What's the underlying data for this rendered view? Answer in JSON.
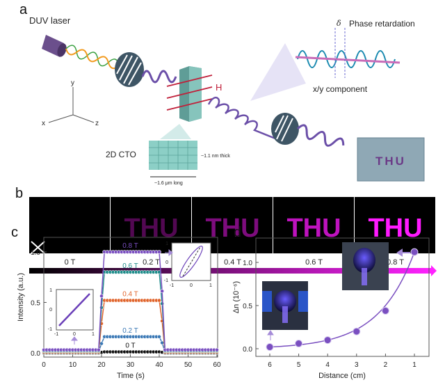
{
  "panel_a": {
    "label": "a",
    "laser": "DUV laser",
    "phase": "Phase retardation",
    "delta": "δ",
    "component": "x/y component",
    "field": "H",
    "material": "2D CTO",
    "thickness": "~1.1 nm thick",
    "length": "~1.6 μm long",
    "axis_x": "x",
    "axis_y": "y",
    "axis_z": "z",
    "screen_text": "THU"
  },
  "panel_b": {
    "label": "b",
    "word": "THU",
    "fields": [
      "0 T",
      "0.2 T",
      "0.4 T",
      "0.6 T",
      "0.8 T"
    ],
    "brightness": [
      0,
      0.2,
      0.4,
      0.7,
      1.0
    ],
    "color": "#ff1aff"
  },
  "chart_data": [
    {
      "panel": "c",
      "type": "line",
      "xlabel": "Time (s)",
      "ylabel": "Intensity (a.u.)",
      "xlim": [
        0,
        60
      ],
      "ylim": [
        -0.03,
        1.1
      ],
      "xticks": [
        "0",
        "10",
        "20",
        "30",
        "40",
        "50",
        "60"
      ],
      "yticks": [
        "0.0",
        "0.5",
        "1.0"
      ],
      "field_on": 20,
      "field_off": 41,
      "sample_interval_s": 1,
      "series": [
        {
          "name": "0 T",
          "color": "#111111",
          "baseline": 0.0,
          "plateau": 0.01
        },
        {
          "name": "0.2 T",
          "color": "#3a78b5",
          "baseline": 0.01,
          "plateau": 0.16
        },
        {
          "name": "0.4 T",
          "color": "#e0632a",
          "baseline": 0.01,
          "plateau": 0.52
        },
        {
          "name": "0.6 T",
          "color": "#1f8c8a",
          "baseline": 0.02,
          "plateau": 0.8
        },
        {
          "name": "0.8 T",
          "color": "#7a4fc0",
          "baseline": 0.03,
          "plateau": 1.0
        }
      ],
      "insets": [
        {
          "type": "line",
          "xticks": [
            "-1",
            "0",
            "1"
          ],
          "yticks": [
            "1",
            "0",
            "-1"
          ]
        },
        {
          "type": "ellipse",
          "xticks": [
            "-1",
            "0",
            "1"
          ],
          "yticks": [
            "1",
            "0",
            "-1"
          ]
        }
      ]
    },
    {
      "panel": "d",
      "type": "scatter",
      "xlabel": "Distance (cm)",
      "ylabel": "Δn (10⁻⁶)",
      "x": [
        6,
        5,
        4,
        3,
        2,
        1
      ],
      "y": [
        0.02,
        0.06,
        0.1,
        0.2,
        0.44,
        1.12
      ],
      "xticks": [
        "6",
        "5",
        "4",
        "3",
        "2",
        "1"
      ],
      "yticks": [
        "0.0",
        "0.5",
        "1.0"
      ],
      "xlim": [
        6.5,
        0.5
      ],
      "ylim": [
        -0.1,
        1.25
      ],
      "color": "#7a4fc0",
      "fit": "exponential"
    }
  ],
  "panel_labels": {
    "c": "c",
    "d": "d"
  }
}
